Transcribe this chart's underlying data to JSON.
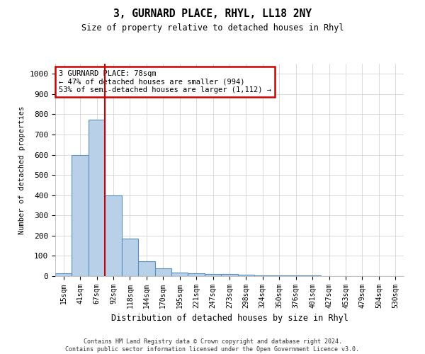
{
  "title1": "3, GURNARD PLACE, RHYL, LL18 2NY",
  "title2": "Size of property relative to detached houses in Rhyl",
  "xlabel": "Distribution of detached houses by size in Rhyl",
  "ylabel": "Number of detached properties",
  "categories": [
    "15sqm",
    "41sqm",
    "67sqm",
    "92sqm",
    "118sqm",
    "144sqm",
    "170sqm",
    "195sqm",
    "221sqm",
    "247sqm",
    "273sqm",
    "298sqm",
    "324sqm",
    "350sqm",
    "376sqm",
    "401sqm",
    "427sqm",
    "453sqm",
    "479sqm",
    "504sqm",
    "530sqm"
  ],
  "values": [
    15,
    600,
    775,
    400,
    185,
    75,
    38,
    18,
    13,
    10,
    10,
    8,
    5,
    3,
    3,
    2,
    1,
    1,
    1,
    0,
    0
  ],
  "bar_color": "#b8d0e8",
  "bar_edge_color": "#5a8fc0",
  "vline_color": "#cc0000",
  "vline_index": 2.5,
  "annotation_text": "3 GURNARD PLACE: 78sqm\n← 47% of detached houses are smaller (994)\n53% of semi-detached houses are larger (1,112) →",
  "annotation_box_color": "#cc0000",
  "ylim": [
    0,
    1050
  ],
  "yticks": [
    0,
    100,
    200,
    300,
    400,
    500,
    600,
    700,
    800,
    900,
    1000
  ],
  "footer": "Contains HM Land Registry data © Crown copyright and database right 2024.\nContains public sector information licensed under the Open Government Licence v3.0.",
  "background_color": "#ffffff",
  "grid_color": "#cccccc"
}
